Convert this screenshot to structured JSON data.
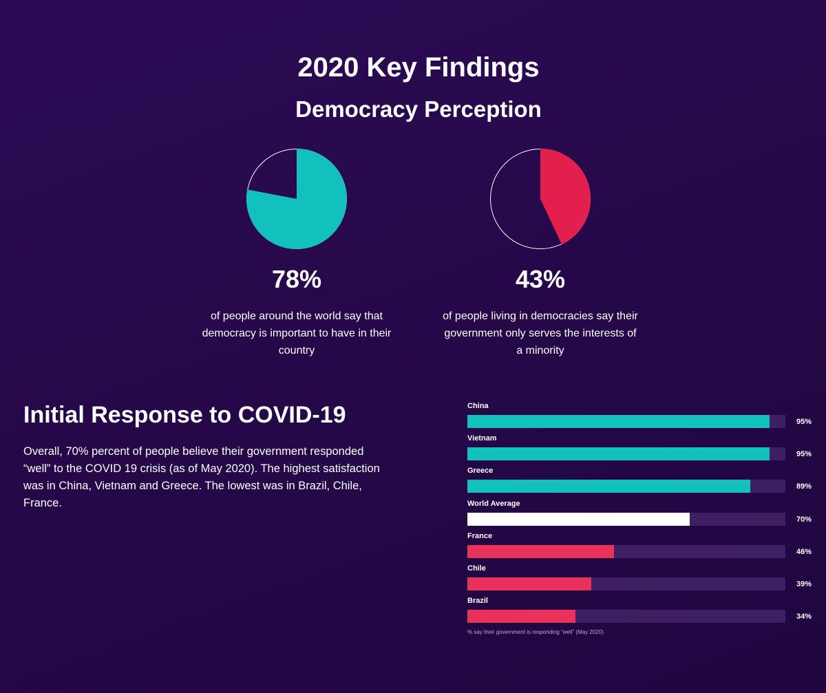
{
  "header": {
    "title": "2020 Key Findings",
    "subtitle": "Democracy Perception"
  },
  "colors": {
    "teal": "#12c1bd",
    "red": "#e21f4d",
    "white": "#ffffff",
    "track": "#3f1f64",
    "background": "#28094d"
  },
  "stats": [
    {
      "percent_label": "78%",
      "description": "of people around the world say that democracy is important to have in their country"
    },
    {
      "percent_label": "43%",
      "description": "of people living in democracies say their government only serves the interests of a minority"
    }
  ],
  "covid": {
    "title": "Initial Response to COVID-19",
    "body": "Overall, 70% percent of people believe their government responded “well” to the COVID 19 crisis (as of May 2020). The highest satisfaction was in China, Vietnam and Greece. The lowest was in Brazil, Chile, France.",
    "footnote": "% say their government is responding “well” (May 2020)"
  },
  "chart_data": [
    {
      "type": "pie",
      "values": [
        78,
        22
      ],
      "colors": [
        "#12c1bd",
        "#28094d"
      ],
      "label": "78%"
    },
    {
      "type": "pie",
      "values": [
        43,
        57
      ],
      "colors": [
        "#e21f4d",
        "#28094d"
      ],
      "label": "43%"
    },
    {
      "type": "bar",
      "orientation": "horizontal",
      "categories": [
        "China",
        "Vietnam",
        "Greece",
        "World Average",
        "France",
        "Chile",
        "Brazil"
      ],
      "values": [
        95,
        95,
        89,
        70,
        46,
        39,
        34
      ],
      "value_labels": [
        "95%",
        "95%",
        "89%",
        "70%",
        "46%",
        "39%",
        "34%"
      ],
      "colors": [
        "#12c1bd",
        "#12c1bd",
        "#12c1bd",
        "#ffffff",
        "#e8315b",
        "#e8315b",
        "#e8315b"
      ],
      "xlim": [
        0,
        100
      ],
      "note": "% say their government is responding “well” (May 2020)"
    }
  ]
}
